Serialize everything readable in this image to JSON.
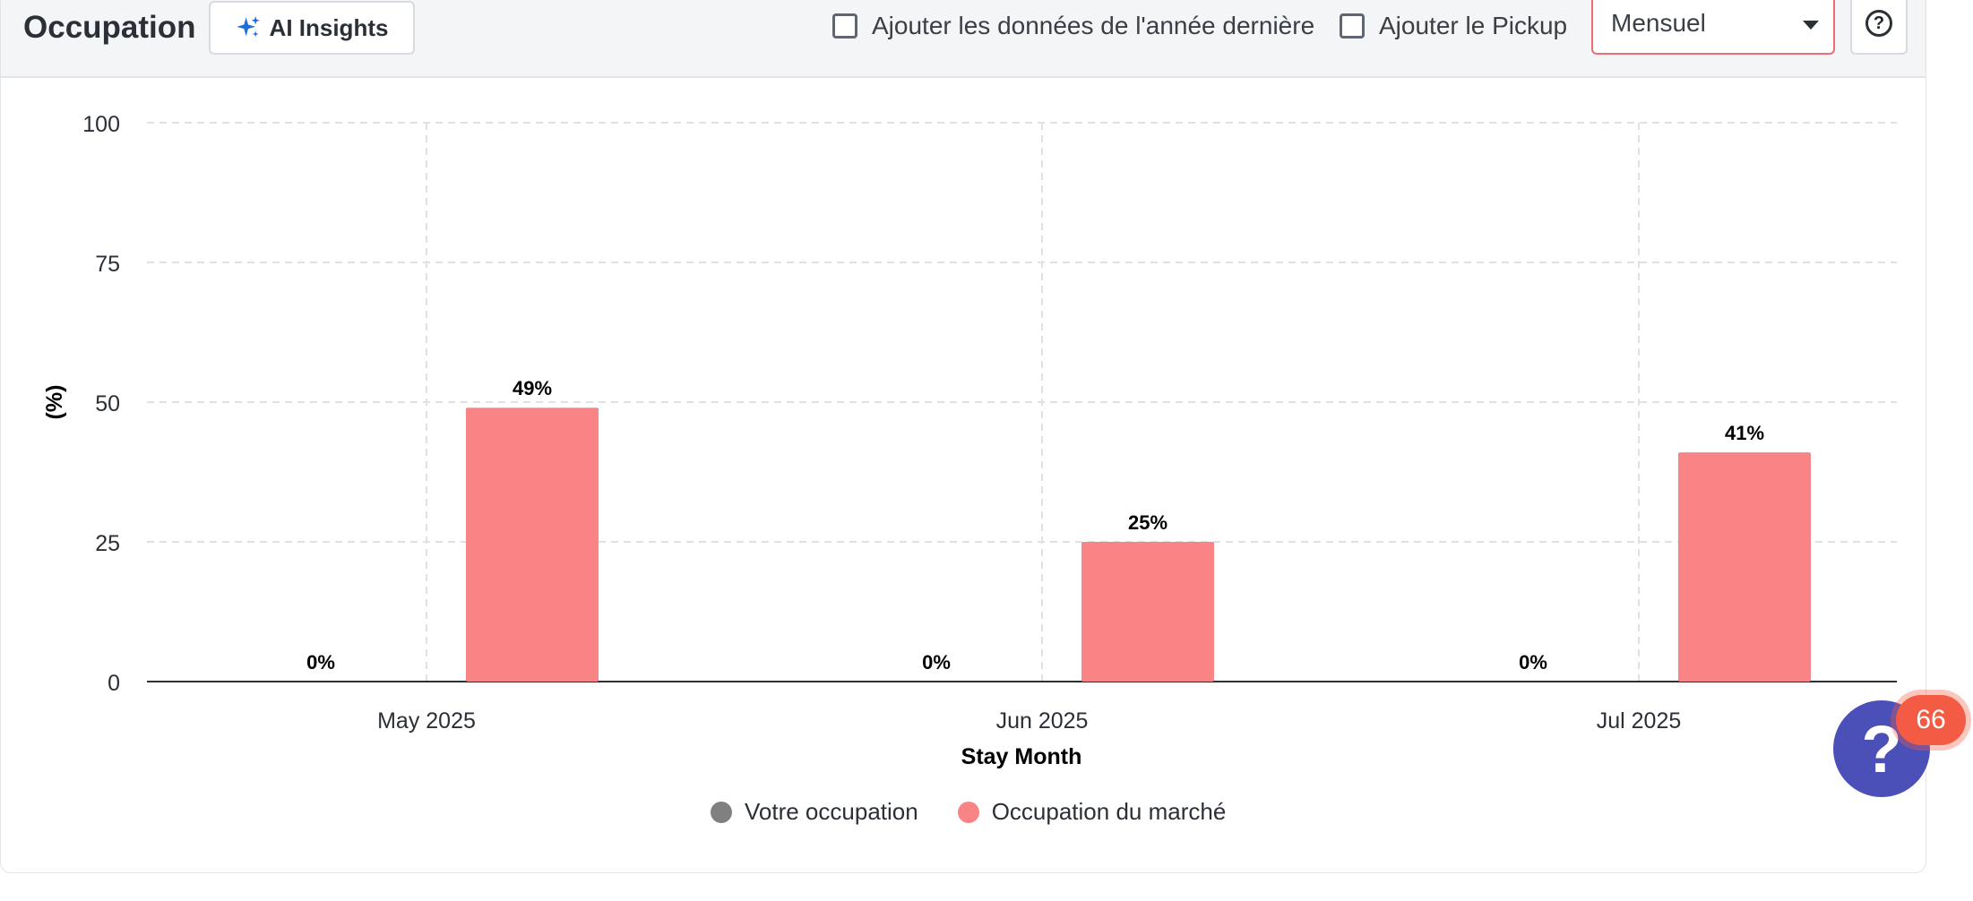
{
  "header": {
    "title": "Occupation",
    "ai_button_label": "AI Insights",
    "checkbox_last_year_label": "Ajouter les données de l'année dernière",
    "checkbox_pickup_label": "Ajouter le Pickup",
    "period_select_value": "Mensuel",
    "help_glyph": "?"
  },
  "chart_data": {
    "type": "bar",
    "xlabel": "Stay Month",
    "ylabel": "(%)",
    "ylim": [
      0,
      100
    ],
    "yticks": [
      0,
      25,
      50,
      75,
      100
    ],
    "grid": true,
    "categories": [
      "May 2025",
      "Jun 2025",
      "Jul 2025"
    ],
    "series": [
      {
        "name": "Votre occupation",
        "values": [
          0,
          0,
          0
        ],
        "labels": [
          "0%",
          "0%",
          "0%"
        ]
      },
      {
        "name": "Occupation du marché",
        "values": [
          49,
          25,
          41
        ],
        "labels": [
          "49%",
          "25%",
          "41%"
        ]
      }
    ],
    "legend_position": "bottom"
  },
  "colors": {
    "series_0": "#808080",
    "series_1": "#f88486",
    "accent": "#ef6b72",
    "fab": "#4b4fb8",
    "badge": "#f45b45"
  },
  "help_widget": {
    "glyph": "?",
    "badge_count": "66"
  }
}
